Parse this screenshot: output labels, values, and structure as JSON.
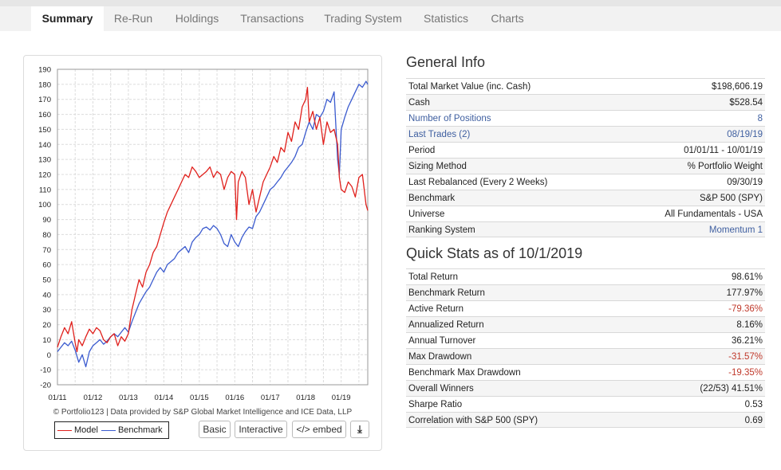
{
  "tabs": [
    "Summary",
    "Re-Run",
    "Holdings",
    "Transactions",
    "Trading System",
    "Statistics",
    "Charts"
  ],
  "active_tab": "Summary",
  "chart_data": {
    "type": "line",
    "x_labels": [
      "01/11",
      "01/12",
      "01/13",
      "01/14",
      "01/15",
      "01/16",
      "01/17",
      "01/18",
      "01/19"
    ],
    "x_range": [
      2011.0,
      2019.75
    ],
    "ylim": [
      -20,
      190
    ],
    "yticks": [
      -20,
      -10,
      0,
      10,
      20,
      30,
      40,
      50,
      60,
      70,
      80,
      90,
      100,
      110,
      120,
      130,
      140,
      150,
      160,
      170,
      180,
      190
    ],
    "grid": true,
    "series": [
      {
        "name": "Model",
        "color": "#e0201c",
        "x": [
          2011.0,
          2011.1,
          2011.2,
          2011.3,
          2011.4,
          2011.5,
          2011.55,
          2011.6,
          2011.7,
          2011.8,
          2011.9,
          2012.0,
          2012.1,
          2012.2,
          2012.3,
          2012.4,
          2012.5,
          2012.6,
          2012.7,
          2012.8,
          2012.9,
          2013.0,
          2013.1,
          2013.2,
          2013.3,
          2013.4,
          2013.5,
          2013.6,
          2013.7,
          2013.8,
          2013.9,
          2014.0,
          2014.1,
          2014.2,
          2014.3,
          2014.4,
          2014.5,
          2014.6,
          2014.7,
          2014.8,
          2014.9,
          2015.0,
          2015.1,
          2015.2,
          2015.3,
          2015.4,
          2015.5,
          2015.6,
          2015.7,
          2015.8,
          2015.9,
          2016.0,
          2016.05,
          2016.1,
          2016.2,
          2016.3,
          2016.4,
          2016.5,
          2016.6,
          2016.7,
          2016.8,
          2016.9,
          2017.0,
          2017.1,
          2017.2,
          2017.3,
          2017.4,
          2017.5,
          2017.6,
          2017.7,
          2017.8,
          2017.9,
          2018.0,
          2018.05,
          2018.1,
          2018.2,
          2018.3,
          2018.4,
          2018.5,
          2018.6,
          2018.7,
          2018.8,
          2018.9,
          2018.95,
          2019.0,
          2019.1,
          2019.2,
          2019.3,
          2019.4,
          2019.5,
          2019.6,
          2019.7,
          2019.75
        ],
        "y": [
          5,
          12,
          18,
          14,
          22,
          8,
          2,
          10,
          6,
          12,
          17,
          14,
          18,
          16,
          10,
          8,
          12,
          14,
          6,
          12,
          9,
          14,
          30,
          40,
          50,
          45,
          55,
          60,
          68,
          72,
          80,
          88,
          95,
          100,
          105,
          110,
          115,
          120,
          118,
          125,
          122,
          118,
          120,
          122,
          125,
          118,
          122,
          120,
          110,
          118,
          122,
          120,
          90,
          115,
          122,
          118,
          100,
          110,
          95,
          105,
          115,
          120,
          125,
          132,
          128,
          138,
          135,
          148,
          142,
          155,
          150,
          165,
          170,
          178,
          155,
          162,
          150,
          158,
          140,
          155,
          148,
          150,
          140,
          118,
          110,
          108,
          115,
          112,
          105,
          118,
          120,
          100,
          96
        ]
      },
      {
        "name": "Benchmark",
        "color": "#3b5bcf",
        "x": [
          2011.0,
          2011.1,
          2011.2,
          2011.3,
          2011.4,
          2011.5,
          2011.6,
          2011.7,
          2011.8,
          2011.9,
          2012.0,
          2012.1,
          2012.2,
          2012.3,
          2012.4,
          2012.5,
          2012.6,
          2012.7,
          2012.8,
          2012.9,
          2013.0,
          2013.1,
          2013.2,
          2013.3,
          2013.4,
          2013.5,
          2013.6,
          2013.7,
          2013.8,
          2013.9,
          2014.0,
          2014.1,
          2014.2,
          2014.3,
          2014.4,
          2014.5,
          2014.6,
          2014.7,
          2014.8,
          2014.9,
          2015.0,
          2015.1,
          2015.2,
          2015.3,
          2015.4,
          2015.5,
          2015.6,
          2015.7,
          2015.8,
          2015.9,
          2016.0,
          2016.1,
          2016.2,
          2016.3,
          2016.4,
          2016.5,
          2016.6,
          2016.7,
          2016.8,
          2016.9,
          2017.0,
          2017.1,
          2017.2,
          2017.3,
          2017.4,
          2017.5,
          2017.6,
          2017.7,
          2017.8,
          2017.9,
          2018.0,
          2018.1,
          2018.2,
          2018.3,
          2018.4,
          2018.5,
          2018.6,
          2018.7,
          2018.8,
          2018.9,
          2018.95,
          2019.0,
          2019.1,
          2019.2,
          2019.3,
          2019.4,
          2019.5,
          2019.6,
          2019.7,
          2019.75
        ],
        "y": [
          2,
          5,
          8,
          6,
          9,
          3,
          -5,
          0,
          -8,
          2,
          6,
          8,
          10,
          7,
          9,
          12,
          14,
          12,
          15,
          18,
          15,
          22,
          28,
          34,
          38,
          42,
          45,
          50,
          55,
          58,
          55,
          60,
          62,
          64,
          68,
          70,
          72,
          68,
          75,
          78,
          80,
          84,
          85,
          83,
          86,
          84,
          80,
          74,
          72,
          80,
          75,
          72,
          78,
          82,
          85,
          84,
          92,
          95,
          100,
          105,
          110,
          112,
          115,
          118,
          122,
          125,
          128,
          132,
          138,
          140,
          148,
          155,
          150,
          160,
          158,
          162,
          170,
          168,
          175,
          130,
          120,
          150,
          158,
          165,
          170,
          175,
          180,
          178,
          182,
          180
        ]
      }
    ]
  },
  "source_text": "© Portfolio123 | Data provided by S&P Global Market Intelligence and ICE Data, LLP",
  "legend": {
    "model": "Model",
    "benchmark": "Benchmark"
  },
  "buttons": {
    "basic": "Basic",
    "interactive": "Interactive",
    "embed": "</> embed",
    "download": "⤓"
  },
  "general_info": {
    "title": "General Info",
    "rows": [
      {
        "label": "Total Market Value (inc. Cash)",
        "value": "$198,606.19"
      },
      {
        "label": "Cash",
        "value": "$528.54"
      },
      {
        "label": "Number of Positions",
        "value": "8"
      },
      {
        "label": "Last Trades (2)",
        "value": "08/19/19"
      },
      {
        "label": "Period",
        "value": "01/01/11 - 10/01/19"
      },
      {
        "label": "Sizing Method",
        "value": "% Portfolio Weight"
      },
      {
        "label": "Last Rebalanced (Every 2 Weeks)",
        "value": "09/30/19"
      },
      {
        "label": "Benchmark",
        "value": "S&P 500 (SPY)"
      },
      {
        "label": "Universe",
        "value": "All Fundamentals - USA"
      },
      {
        "label": "Ranking System",
        "value": "Momentum 1"
      }
    ]
  },
  "quick_stats": {
    "title": "Quick Stats as of 10/1/2019",
    "rows": [
      {
        "label": "Total Return",
        "value": "98.61%"
      },
      {
        "label": "Benchmark Return",
        "value": "177.97%"
      },
      {
        "label": "Active Return",
        "value": "-79.36%"
      },
      {
        "label": "Annualized Return",
        "value": "8.16%"
      },
      {
        "label": "Annual Turnover",
        "value": "36.21%"
      },
      {
        "label": "Max Drawdown",
        "value": "-31.57%"
      },
      {
        "label": "Benchmark Max Drawdown",
        "value": "-19.35%"
      },
      {
        "label": "Overall Winners",
        "value": "(22/53) 41.51%"
      },
      {
        "label": "Sharpe Ratio",
        "value": "0.53"
      },
      {
        "label": "Correlation with S&P 500 (SPY)",
        "value": "0.69"
      }
    ]
  }
}
